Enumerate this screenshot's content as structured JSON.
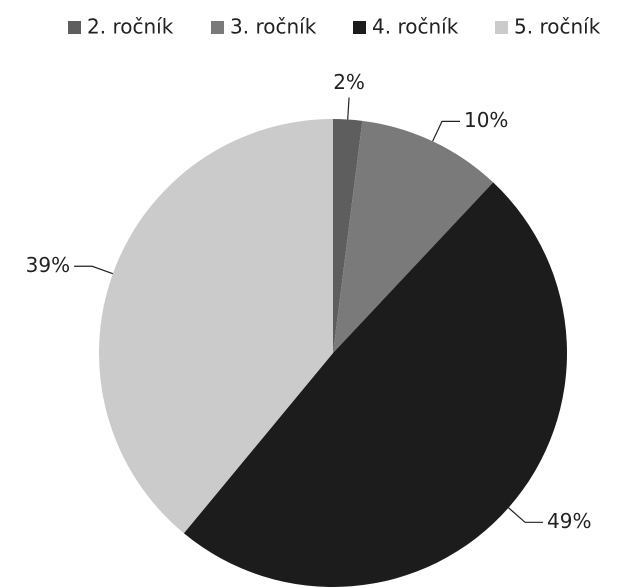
{
  "chart_data": {
    "type": "pie",
    "categories": [
      "2. ročník",
      "3. ročník",
      "4. ročník",
      "5. ročník"
    ],
    "values": [
      2,
      10,
      49,
      39
    ],
    "value_labels": [
      "2%",
      "10%",
      "49%",
      "39%"
    ],
    "colors": [
      "#5e5e5e",
      "#7a7a7a",
      "#1c1c1c",
      "#cbcbcb"
    ],
    "legend": "top"
  }
}
